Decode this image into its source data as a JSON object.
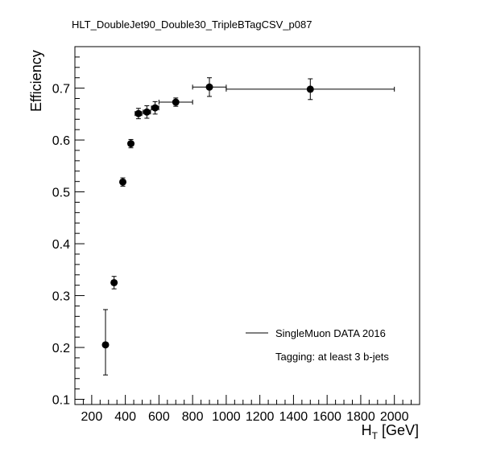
{
  "chart_data": {
    "type": "scatter",
    "title": "HLT_DoubleJet90_Double30_TripleBTagCSV_p087",
    "xlabel_main": "H",
    "xlabel_sub": "T",
    "xlabel_unit": " [GeV]",
    "ylabel": "Efficiency",
    "xlim": [
      100,
      2150
    ],
    "ylim": [
      0.09,
      0.78
    ],
    "x_ticks": [
      200,
      400,
      600,
      800,
      1000,
      1200,
      1400,
      1600,
      1800,
      2000
    ],
    "y_ticks": [
      0.1,
      0.2,
      0.3,
      0.4,
      0.5,
      0.6,
      0.7
    ],
    "y_tick_labels": [
      "0.1",
      "0.2",
      "0.3",
      "0.4",
      "0.5",
      "0.6",
      "0.7"
    ],
    "grid": false,
    "legend_position": "bottom-right",
    "series": [
      {
        "name": "SingleMuon DATA 2016",
        "color": "#000000",
        "points": [
          {
            "x": 282,
            "xerr": 8,
            "y": 0.205,
            "yerr_low": 0.058,
            "yerr_high": 0.068
          },
          {
            "x": 333,
            "xerr": 12,
            "y": 0.325,
            "yerr_low": 0.012,
            "yerr_high": 0.012
          },
          {
            "x": 385,
            "xerr": 12,
            "y": 0.519,
            "yerr_low": 0.008,
            "yerr_high": 0.008
          },
          {
            "x": 433,
            "xerr": 12,
            "y": 0.593,
            "yerr_low": 0.008,
            "yerr_high": 0.008
          },
          {
            "x": 478,
            "xerr": 20,
            "y": 0.651,
            "yerr_low": 0.01,
            "yerr_high": 0.01
          },
          {
            "x": 528,
            "xerr": 22,
            "y": 0.654,
            "yerr_low": 0.012,
            "yerr_high": 0.012
          },
          {
            "x": 577,
            "xerr": 22,
            "y": 0.662,
            "yerr_low": 0.012,
            "yerr_high": 0.012
          },
          {
            "x": 700,
            "xerr": 100,
            "y": 0.673,
            "yerr_low": 0.008,
            "yerr_high": 0.008
          },
          {
            "x": 900,
            "xerr": 100,
            "y": 0.702,
            "yerr_low": 0.018,
            "yerr_high": 0.018
          },
          {
            "x": 1500,
            "xerr": 500,
            "y": 0.698,
            "yerr_low": 0.02,
            "yerr_high": 0.02
          }
        ]
      }
    ],
    "legend": {
      "entry": "SingleMuon DATA 2016",
      "note": "Tagging: at least 3 b-jets"
    }
  }
}
